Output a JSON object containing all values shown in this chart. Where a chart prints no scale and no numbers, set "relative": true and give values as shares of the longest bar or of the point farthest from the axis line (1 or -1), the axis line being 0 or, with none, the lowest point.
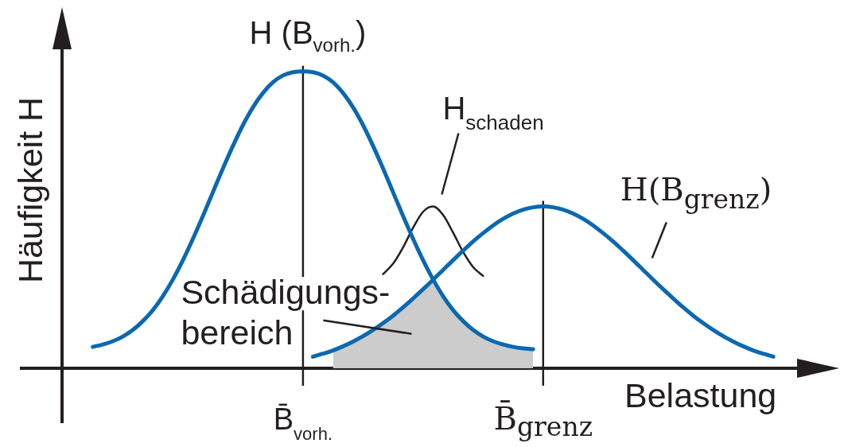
{
  "chart_data": {
    "type": "line",
    "relative": true,
    "xlabel": "Belastung",
    "ylabel": "Häufigkeit H",
    "categories": [
      null,
      null,
      null,
      null,
      null,
      null,
      null,
      null,
      null,
      null,
      null,
      null,
      null,
      null,
      null,
      null,
      null,
      null,
      null,
      null,
      null,
      null,
      null,
      null,
      "B̄$_{vorh.}$",
      null,
      null,
      null,
      null,
      null,
      null,
      null,
      null,
      null,
      null,
      null,
      null,
      null,
      null,
      null,
      null,
      null,
      null,
      null,
      null,
      null,
      null,
      null,
      "B̄$_{grenz}$",
      null,
      null,
      null,
      null,
      null,
      null,
      null,
      null,
      null,
      null,
      null,
      null,
      null,
      null,
      null,
      null,
      null,
      null,
      null,
      null,
      null,
      null,
      null,
      null,
      null,
      null,
      null,
      null
    ],
    "series": [
      {
        "name": "H (B$_{vorh.}$)",
        "color": "#0b68b1",
        "values": [
          null,
          null,
          null,
          0.072,
          0.08,
          0.091,
          0.107,
          0.129,
          0.159,
          0.196,
          0.243,
          0.299,
          0.364,
          0.436,
          0.513,
          0.593,
          0.673,
          0.749,
          0.819,
          0.879,
          0.927,
          0.963,
          0.986,
          0.997,
          1,
          0.997,
          0.986,
          0.963,
          0.927,
          0.879,
          0.819,
          0.749,
          0.673,
          0.593,
          0.513,
          0.436,
          0.364,
          0.299,
          0.243,
          0.196,
          0.159,
          0.129,
          0.107,
          0.091,
          0.08,
          0.072,
          0.067,
          0.064,
          null,
          null,
          null,
          null,
          null,
          null,
          null,
          null,
          null,
          null,
          null,
          null,
          null,
          null,
          null,
          null,
          null,
          null,
          null,
          null,
          null,
          null,
          null,
          null,
          null,
          null,
          null,
          null,
          null
        ]
      },
      {
        "name": "H(B$_{grenz}$)",
        "color": "#0b68b1",
        "values": [
          null,
          null,
          null,
          null,
          null,
          null,
          null,
          null,
          null,
          null,
          null,
          null,
          null,
          null,
          null,
          null,
          null,
          null,
          null,
          null,
          null,
          null,
          null,
          null,
          null,
          0.039,
          0.049,
          0.06,
          0.074,
          0.09,
          0.108,
          0.129,
          0.152,
          0.177,
          0.205,
          0.235,
          0.266,
          0.298,
          0.331,
          0.364,
          0.396,
          0.427,
          0.455,
          0.481,
          0.503,
          0.521,
          0.534,
          0.542,
          0.545,
          0.542,
          0.534,
          0.521,
          0.503,
          0.481,
          0.455,
          0.427,
          0.396,
          0.364,
          0.331,
          0.298,
          0.266,
          0.235,
          0.205,
          0.177,
          0.152,
          0.129,
          0.108,
          0.09,
          0.074,
          0.06,
          0.049,
          0.039,
          null,
          null,
          null,
          null,
          null
        ]
      },
      {
        "name": "H$_{schaden}$",
        "color": "#231f20",
        "values": [
          null,
          null,
          null,
          null,
          null,
          null,
          null,
          null,
          null,
          null,
          null,
          null,
          null,
          null,
          null,
          null,
          null,
          null,
          null,
          null,
          null,
          null,
          null,
          null,
          null,
          null,
          null,
          null,
          null,
          null,
          null,
          null,
          0.317,
          0.352,
          0.407,
          0.473,
          0.527,
          0.545,
          0.516,
          0.457,
          0.392,
          0.341,
          0.311,
          null,
          null,
          null,
          null,
          null,
          null,
          null,
          null,
          null,
          null,
          null,
          null,
          null,
          null,
          null,
          null,
          null,
          null,
          null,
          null,
          null,
          null,
          null,
          null,
          null,
          null,
          null,
          null,
          null,
          null,
          null,
          null,
          null,
          null
        ]
      },
      {
        "type": "area",
        "name": "Schädigungs-\nbereich",
        "color": "#cccccc",
        "values": [
          null,
          null,
          null,
          null,
          null,
          null,
          null,
          null,
          null,
          null,
          null,
          null,
          null,
          null,
          null,
          null,
          null,
          null,
          null,
          null,
          null,
          null,
          null,
          null,
          null,
          null,
          null,
          0.06,
          0.074,
          0.09,
          0.108,
          0.129,
          0.152,
          0.177,
          0.205,
          0.235,
          0.266,
          0.298,
          0.243,
          0.196,
          0.159,
          0.129,
          0.107,
          0.091,
          0.08,
          0.072,
          0.067,
          0.064,
          null,
          null,
          null,
          null,
          null,
          null,
          null,
          null,
          null,
          null,
          null,
          null,
          null,
          null,
          null,
          null,
          null,
          null,
          null,
          null,
          null,
          null,
          null,
          null,
          null,
          null,
          null,
          null,
          null
        ]
      }
    ],
    "ref_lines": [
      {
        "axis": "x",
        "value": "B̄$_{vorh.}$"
      },
      {
        "axis": "x",
        "value": "B̄$_{grenz}$"
      }
    ]
  }
}
